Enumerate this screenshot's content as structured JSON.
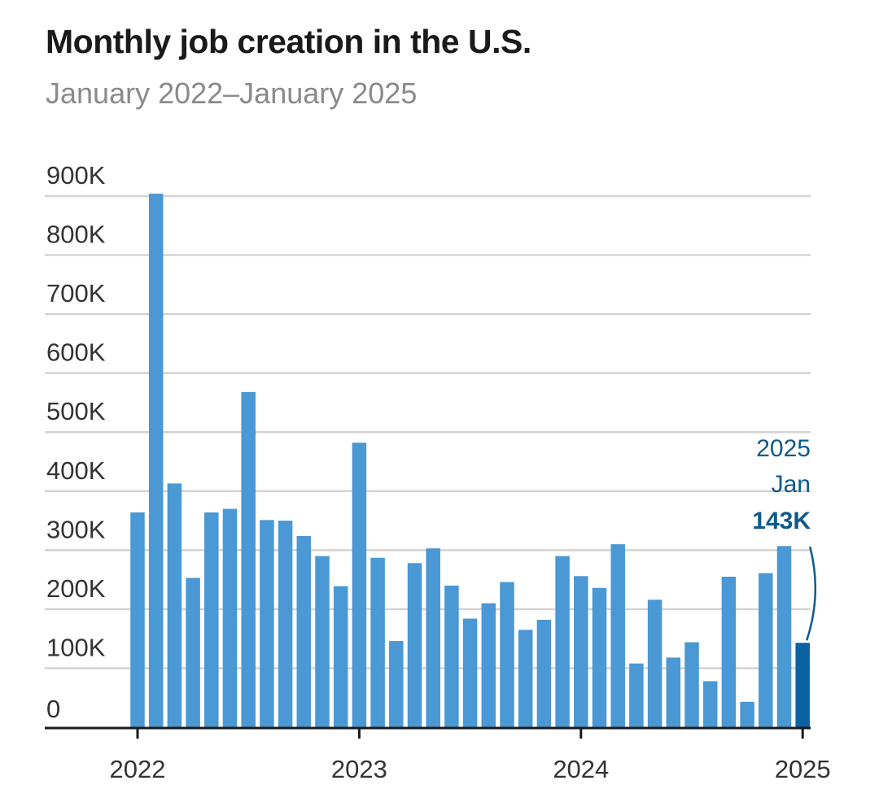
{
  "chart_data": {
    "type": "bar",
    "title": "Monthly job creation in the U.S.",
    "subtitle": "January 2022–January 2025",
    "xlabel": "",
    "ylabel": "",
    "ylim": [
      0,
      900000
    ],
    "grid": true,
    "yticks": [
      0,
      100000,
      200000,
      300000,
      400000,
      500000,
      600000,
      700000,
      800000,
      900000
    ],
    "ytick_labels": [
      "0",
      "100K",
      "200K",
      "300K",
      "400K",
      "500K",
      "600K",
      "700K",
      "800K",
      "900K"
    ],
    "xticks": [
      {
        "label": "2022",
        "index": 0
      },
      {
        "label": "2023",
        "index": 12
      },
      {
        "label": "2024",
        "index": 24
      },
      {
        "label": "2025",
        "index": 36
      }
    ],
    "categories": [
      "Jan 2022",
      "Feb 2022",
      "Mar 2022",
      "Apr 2022",
      "May 2022",
      "Jun 2022",
      "Jul 2022",
      "Aug 2022",
      "Sep 2022",
      "Oct 2022",
      "Nov 2022",
      "Dec 2022",
      "Jan 2023",
      "Feb 2023",
      "Mar 2023",
      "Apr 2023",
      "May 2023",
      "Jun 2023",
      "Jul 2023",
      "Aug 2023",
      "Sep 2023",
      "Oct 2023",
      "Nov 2023",
      "Dec 2023",
      "Jan 2024",
      "Feb 2024",
      "Mar 2024",
      "Apr 2024",
      "May 2024",
      "Jun 2024",
      "Jul 2024",
      "Aug 2024",
      "Sep 2024",
      "Oct 2024",
      "Nov 2024",
      "Dec 2024",
      "Jan 2025"
    ],
    "values": [
      364000,
      904000,
      413000,
      253000,
      364000,
      370000,
      568000,
      351000,
      350000,
      324000,
      290000,
      239000,
      482000,
      287000,
      146000,
      278000,
      303000,
      240000,
      184000,
      210000,
      246000,
      165000,
      182000,
      290000,
      256000,
      236000,
      310000,
      108000,
      216000,
      118000,
      144000,
      78000,
      255000,
      43000,
      261000,
      307000,
      143000
    ],
    "highlight_index": 36,
    "colors": {
      "bar": "#4a98d4",
      "highlight": "#0b62a0",
      "grid": "#d3d3d3",
      "axis": "#1a1a1a",
      "annotation": "#0d5a8c"
    },
    "annotation": {
      "year": "2025",
      "month": "Jan",
      "value_label": "143K"
    }
  }
}
